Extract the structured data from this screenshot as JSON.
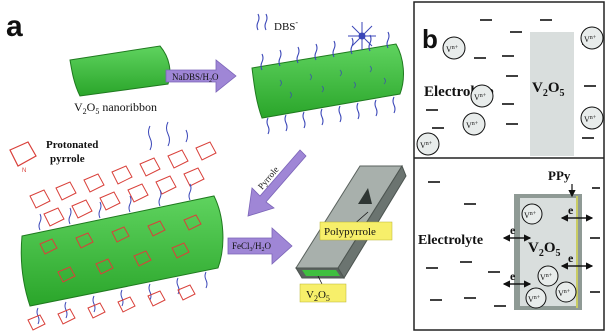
{
  "panel_a": {
    "letter": "a",
    "dbs_label": "DBS",
    "dbs_sup": "-",
    "nanoribbon_label": "V",
    "nanoribbon_sub": "2",
    "nanoribbon_mid": "O",
    "nanoribbon_sub2": "5",
    "nanoribbon_tail": " nanoribbon",
    "step1_label": "NaDBS/H",
    "step1_sub": "2",
    "step1_tail": "O",
    "step2_label": "Pyrrole",
    "step3_label": "FeCl",
    "step3_sub": "3",
    "step3_tail": "/H",
    "step3_sub2": "2",
    "step3_tail2": "O",
    "protonated_line1": "Protonated",
    "protonated_line2": "pyrrole",
    "polypyrrole_label": "Polypyrrole",
    "v2o5_box": "V",
    "v2o5_box_sub": "2",
    "v2o5_box_mid": "O",
    "v2o5_box_sub2": "5",
    "plus_mark": "+",
    "ring_marker": "N"
  },
  "panel_b": {
    "letter": "b",
    "top_electrolyte": "Electrolyte",
    "top_v2o5": "V",
    "top_v2o5_sub": "2",
    "top_v2o5_mid": "O",
    "top_v2o5_sub2": "5",
    "ion_label": "V",
    "ion_sup": "n+",
    "bottom_electrolyte": "Electrolyte",
    "bottom_v2o5": "V",
    "bottom_v2o5_sub": "2",
    "bottom_v2o5_mid": "O",
    "bottom_v2o5_sub2": "5",
    "ppy_label": "PPy",
    "electron_label": "e"
  },
  "colors": {
    "ribbon_green": "#3fbf3f",
    "ribbon_dark": "#1f7a1f",
    "arrow_purple": "#9f86d6",
    "v2o5_gray": "#d9dedd",
    "ppy_gray": "#a8b0ac",
    "ppy_dark": "#6b7470",
    "label_yellow": "#f7ef6a",
    "pyrrole_red": "#d9403a",
    "chain_blue": "#3a46b8"
  }
}
